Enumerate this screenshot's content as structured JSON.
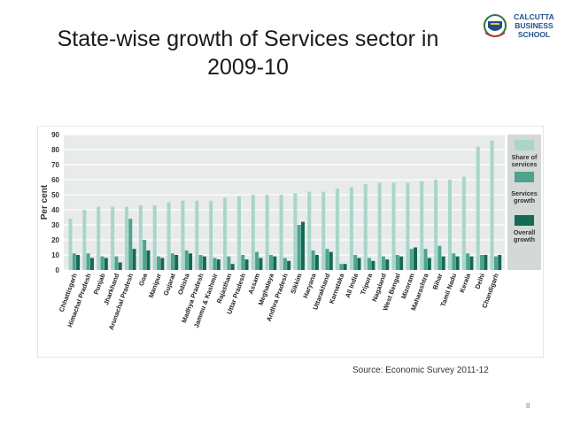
{
  "slide": {
    "title_line1": "State-wise growth of Services sector in",
    "title_line2": "2009-10",
    "logo_text": [
      "CALCUTTA",
      "BUSINESS",
      "SCHOOL"
    ],
    "source": "Source: Economic Survey 2011-12",
    "page_number": "8"
  },
  "colors": {
    "share": "#a9d5cb",
    "services": "#4ea38e",
    "overall": "#136a55",
    "plot_bg": "#e8ebea",
    "legend_bg": "#d4d8d7"
  },
  "chart_data": {
    "type": "bar",
    "title": "",
    "xlabel": "",
    "ylabel": "Per cent",
    "ylim": [
      0,
      90
    ],
    "yticks": [
      0,
      10,
      20,
      30,
      40,
      50,
      60,
      70,
      80,
      90
    ],
    "categories": [
      "Chhattisgarh",
      "Himachal Pradesh",
      "Punjab",
      "Jharkhand",
      "Arunachal Pradesh",
      "Goa",
      "Manipur",
      "Gujarat",
      "Odisha",
      "Madhya Pradesh",
      "Jammu & Kashmir",
      "Rajasthan",
      "Uttar Pradesh",
      "Assam",
      "Meghalaya",
      "Andhra Pradesh",
      "Sikkim",
      "Haryana",
      "Uttarakhand",
      "Karnataka",
      "All India",
      "Tripura",
      "Nagaland",
      "West Bengal",
      "Mizoram",
      "Maharashtra",
      "Bihar",
      "Tamil Nadu",
      "Kerala",
      "Delhi",
      "Chandigarh"
    ],
    "series": [
      {
        "name": "Share of services",
        "values": [
          34,
          40,
          42,
          42,
          42,
          43,
          43,
          45,
          46,
          46,
          46,
          48,
          49,
          50,
          50,
          50,
          51,
          52,
          52,
          54,
          55,
          57,
          58,
          58,
          58,
          59,
          60,
          60,
          62,
          82,
          86
        ]
      },
      {
        "name": "Services growth",
        "values": [
          11,
          11,
          9,
          9,
          34,
          20,
          9,
          11,
          13,
          10,
          8,
          9,
          10,
          12,
          10,
          8,
          30,
          13,
          14,
          4,
          10,
          8,
          9,
          10,
          14,
          14,
          16,
          11,
          11,
          10,
          9
        ]
      },
      {
        "name": "Overall growth",
        "values": [
          10,
          8,
          8,
          5,
          14,
          13,
          8,
          10,
          11,
          9,
          7,
          4,
          7,
          8,
          9,
          6,
          32,
          10,
          12,
          4,
          8,
          6,
          7,
          9,
          15,
          8,
          9,
          9,
          9,
          10,
          10
        ]
      }
    ],
    "legend": [
      "Share of services",
      "Services growth",
      "Overall growth"
    ],
    "legend_position": "right",
    "grid": true
  }
}
